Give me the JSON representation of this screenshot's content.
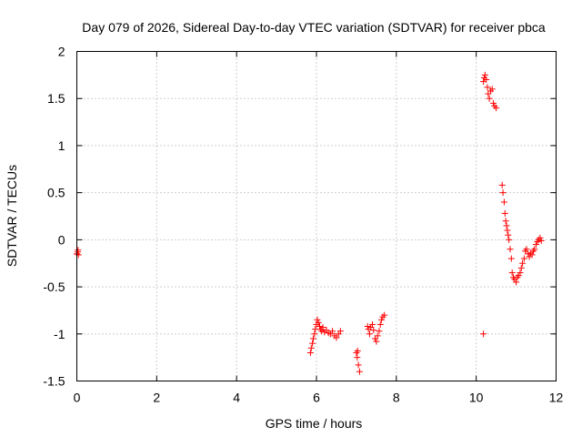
{
  "chart_data": {
    "type": "scatter",
    "title": "Day 079 of 2026, Sidereal Day-to-day VTEC variation (SDTVAR) for receiver pbca",
    "xlabel": "GPS time / hours",
    "ylabel": "SDTVAR / TECUs",
    "xlim": [
      0,
      12
    ],
    "ylim": [
      -1.5,
      2
    ],
    "xticks": [
      0,
      2,
      4,
      6,
      8,
      10,
      12
    ],
    "xtick_labels": [
      "0",
      "2",
      "4",
      "6",
      "8",
      "10",
      "12"
    ],
    "yticks": [
      -1.5,
      -1,
      -0.5,
      0,
      0.5,
      1,
      1.5,
      2
    ],
    "ytick_labels": [
      "-1.5",
      "-1",
      "-0.5",
      "0",
      "0.5",
      "1",
      "1.5",
      "2"
    ],
    "grid": true,
    "marker": "+",
    "series": [
      {
        "name": "SDTVAR",
        "color": "#ff0000",
        "points": [
          [
            0.0,
            -0.15
          ],
          [
            0.02,
            -0.13
          ],
          [
            0.03,
            -0.11
          ],
          [
            0.04,
            -0.16
          ],
          [
            5.85,
            -1.2
          ],
          [
            5.87,
            -1.15
          ],
          [
            5.9,
            -1.1
          ],
          [
            5.92,
            -1.05
          ],
          [
            5.95,
            -1.0
          ],
          [
            5.97,
            -0.95
          ],
          [
            6.0,
            -0.9
          ],
          [
            6.02,
            -0.85
          ],
          [
            6.05,
            -0.88
          ],
          [
            6.08,
            -0.92
          ],
          [
            6.1,
            -0.95
          ],
          [
            6.13,
            -0.97
          ],
          [
            6.16,
            -0.93
          ],
          [
            6.2,
            -0.98
          ],
          [
            6.25,
            -0.96
          ],
          [
            6.3,
            -0.99
          ],
          [
            6.35,
            -1.0
          ],
          [
            6.4,
            -0.97
          ],
          [
            6.45,
            -1.02
          ],
          [
            6.5,
            -1.04
          ],
          [
            6.55,
            -1.0
          ],
          [
            6.6,
            -0.97
          ],
          [
            7.0,
            -1.2
          ],
          [
            7.02,
            -1.25
          ],
          [
            7.05,
            -1.33
          ],
          [
            7.08,
            -1.4
          ],
          [
            7.03,
            -1.18
          ],
          [
            7.28,
            -0.92
          ],
          [
            7.3,
            -0.95
          ],
          [
            7.33,
            -1.0
          ],
          [
            7.36,
            -0.93
          ],
          [
            7.4,
            -0.9
          ],
          [
            7.43,
            -0.96
          ],
          [
            7.47,
            -1.05
          ],
          [
            7.5,
            -1.08
          ],
          [
            7.53,
            -1.02
          ],
          [
            7.57,
            -0.97
          ],
          [
            7.6,
            -0.9
          ],
          [
            7.63,
            -0.85
          ],
          [
            7.66,
            -0.82
          ],
          [
            7.7,
            -0.8
          ],
          [
            10.18,
            -1.0
          ],
          [
            10.18,
            1.68
          ],
          [
            10.2,
            1.72
          ],
          [
            10.22,
            1.75
          ],
          [
            10.25,
            1.7
          ],
          [
            10.28,
            1.62
          ],
          [
            10.3,
            1.55
          ],
          [
            10.33,
            1.5
          ],
          [
            10.36,
            1.58
          ],
          [
            10.4,
            1.6
          ],
          [
            10.43,
            1.45
          ],
          [
            10.46,
            1.42
          ],
          [
            10.5,
            1.4
          ],
          [
            10.65,
            0.58
          ],
          [
            10.67,
            0.5
          ],
          [
            10.7,
            0.4
          ],
          [
            10.72,
            0.28
          ],
          [
            10.74,
            0.2
          ],
          [
            10.76,
            0.15
          ],
          [
            10.78,
            0.1
          ],
          [
            10.8,
            0.05
          ],
          [
            10.82,
            0.0
          ],
          [
            10.85,
            -0.1
          ],
          [
            10.88,
            -0.2
          ],
          [
            10.9,
            -0.35
          ],
          [
            10.93,
            -0.4
          ],
          [
            10.96,
            -0.42
          ],
          [
            11.0,
            -0.45
          ],
          [
            11.03,
            -0.4
          ],
          [
            11.06,
            -0.38
          ],
          [
            11.1,
            -0.35
          ],
          [
            11.13,
            -0.3
          ],
          [
            11.16,
            -0.25
          ],
          [
            11.2,
            -0.2
          ],
          [
            11.23,
            -0.12
          ],
          [
            11.26,
            -0.1
          ],
          [
            11.3,
            -0.15
          ],
          [
            11.33,
            -0.18
          ],
          [
            11.36,
            -0.14
          ],
          [
            11.4,
            -0.16
          ],
          [
            11.43,
            -0.12
          ],
          [
            11.46,
            -0.1
          ],
          [
            11.5,
            -0.05
          ],
          [
            11.53,
            -0.02
          ],
          [
            11.56,
            0.0
          ],
          [
            11.6,
            0.02
          ],
          [
            11.63,
            -0.01
          ]
        ]
      }
    ]
  }
}
